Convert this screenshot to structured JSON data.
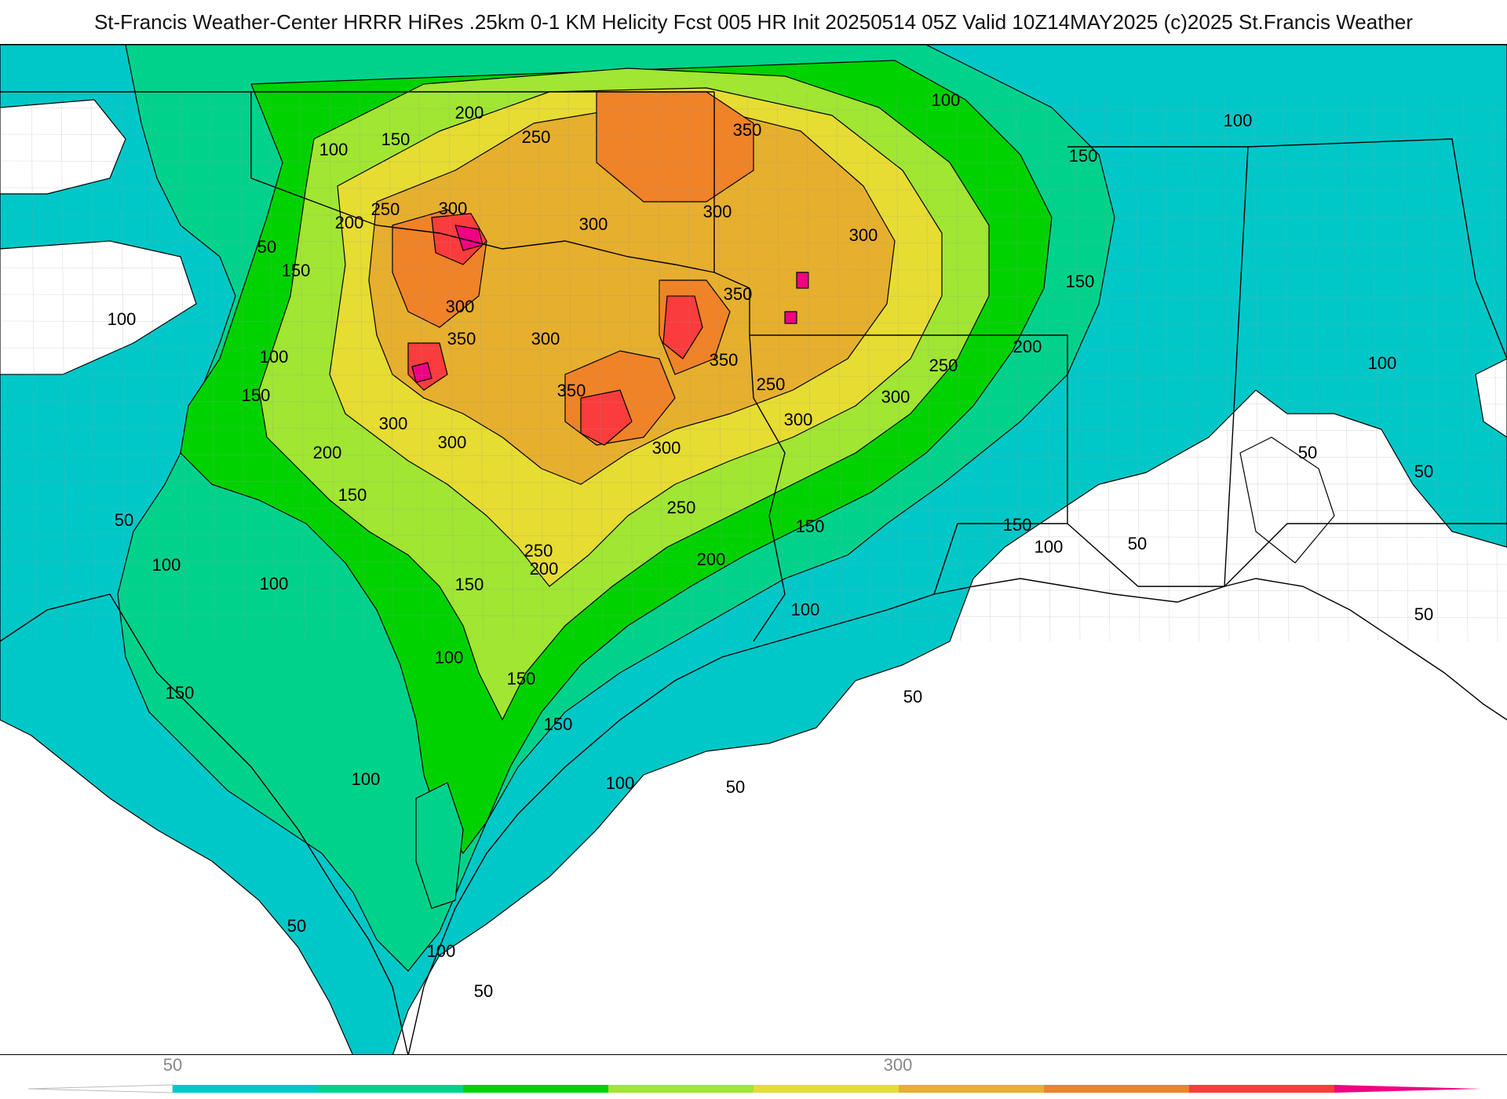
{
  "title": "St-Francis Weather-Center HRRR HiRes .25km 0-1 KM Helicity Fcst 005 HR Init 20250514 05Z  Valid 10Z14MAY2025     (c)2025 St.Francis Weather",
  "colors": {
    "lt50": "#ffffff",
    "c50": "#00c8c8",
    "c100": "#00d28c",
    "c150": "#00d200",
    "c200": "#a0e632",
    "c250": "#e6dc32",
    "c300": "#e6af2d",
    "c350": "#f08228",
    "c400": "#fa3c3c",
    "c450": "#f00082",
    "state_line": "#000000",
    "county_line": "#9a9a9a",
    "coast_line": "#000000"
  },
  "colorbar": {
    "tick_labels": [
      "50",
      "300"
    ],
    "levels": [
      50,
      100,
      150,
      200,
      250,
      300,
      350,
      400,
      450,
      500
    ]
  },
  "contour_labels": [
    "200",
    "250",
    "350",
    "100",
    "100",
    "150",
    "100",
    "300",
    "300",
    "250",
    "150",
    "200",
    "50",
    "300",
    "150",
    "300",
    "300",
    "100",
    "350",
    "150",
    "100",
    "350",
    "300",
    "350",
    "150",
    "300",
    "350",
    "250",
    "250",
    "300",
    "300",
    "200",
    "300",
    "200",
    "300",
    "150",
    "150",
    "250",
    "50",
    "250",
    "200",
    "50",
    "100",
    "150",
    "200",
    "150",
    "100",
    "50",
    "100",
    "150",
    "150",
    "100",
    "100",
    "150",
    "100",
    "50",
    "100",
    "50",
    "50",
    "100",
    "50",
    "50",
    "100",
    "50"
  ]
}
